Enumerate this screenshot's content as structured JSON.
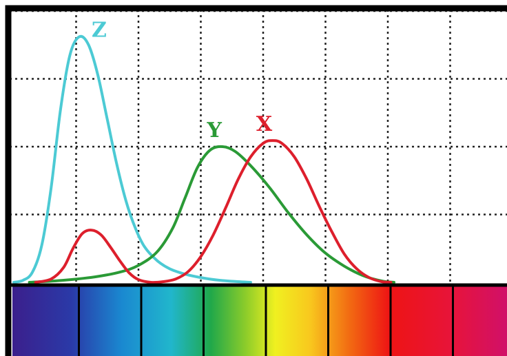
{
  "chart_data": {
    "type": "line",
    "title": "",
    "xlabel": "",
    "ylabel": "",
    "xlim": [
      0,
      8
    ],
    "ylim": [
      0,
      4
    ],
    "grid": true,
    "spectrum_band": true,
    "series": [
      {
        "name": "Z",
        "color": "#4ccad4",
        "points": [
          [
            0.0,
            0.0
          ],
          [
            0.15,
            0.03
          ],
          [
            0.3,
            0.15
          ],
          [
            0.45,
            0.55
          ],
          [
            0.6,
            1.4
          ],
          [
            0.75,
            2.55
          ],
          [
            0.9,
            3.35
          ],
          [
            1.05,
            3.62
          ],
          [
            1.2,
            3.5
          ],
          [
            1.35,
            3.05
          ],
          [
            1.5,
            2.4
          ],
          [
            1.65,
            1.75
          ],
          [
            1.8,
            1.2
          ],
          [
            1.95,
            0.8
          ],
          [
            2.1,
            0.52
          ],
          [
            2.3,
            0.32
          ],
          [
            2.5,
            0.2
          ],
          [
            2.75,
            0.12
          ],
          [
            3.0,
            0.07
          ],
          [
            3.3,
            0.03
          ],
          [
            3.6,
            0.01
          ],
          [
            3.8,
            0.0
          ]
        ]
      },
      {
        "name": "Y",
        "color": "#2a9a36",
        "points": [
          [
            0.25,
            0.0
          ],
          [
            0.8,
            0.03
          ],
          [
            1.3,
            0.08
          ],
          [
            1.7,
            0.15
          ],
          [
            2.0,
            0.25
          ],
          [
            2.3,
            0.45
          ],
          [
            2.55,
            0.8
          ],
          [
            2.75,
            1.25
          ],
          [
            2.95,
            1.7
          ],
          [
            3.15,
            1.95
          ],
          [
            3.35,
            2.0
          ],
          [
            3.55,
            1.93
          ],
          [
            3.8,
            1.72
          ],
          [
            4.1,
            1.4
          ],
          [
            4.4,
            1.03
          ],
          [
            4.7,
            0.7
          ],
          [
            5.0,
            0.43
          ],
          [
            5.3,
            0.24
          ],
          [
            5.6,
            0.1
          ],
          [
            5.9,
            0.02
          ],
          [
            6.1,
            0.0
          ]
        ]
      },
      {
        "name": "X",
        "color": "#dd1f2c",
        "points": [
          [
            0.35,
            0.0
          ],
          [
            0.6,
            0.05
          ],
          [
            0.8,
            0.22
          ],
          [
            0.95,
            0.5
          ],
          [
            1.1,
            0.72
          ],
          [
            1.25,
            0.77
          ],
          [
            1.4,
            0.7
          ],
          [
            1.55,
            0.52
          ],
          [
            1.7,
            0.32
          ],
          [
            1.85,
            0.14
          ],
          [
            2.0,
            0.04
          ],
          [
            2.2,
            0.0
          ],
          [
            2.4,
            0.01
          ],
          [
            2.6,
            0.05
          ],
          [
            2.8,
            0.16
          ],
          [
            3.0,
            0.38
          ],
          [
            3.2,
            0.7
          ],
          [
            3.4,
            1.1
          ],
          [
            3.6,
            1.52
          ],
          [
            3.8,
            1.85
          ],
          [
            4.0,
            2.05
          ],
          [
            4.15,
            2.09
          ],
          [
            4.3,
            2.05
          ],
          [
            4.5,
            1.85
          ],
          [
            4.7,
            1.52
          ],
          [
            4.9,
            1.12
          ],
          [
            5.1,
            0.75
          ],
          [
            5.3,
            0.42
          ],
          [
            5.5,
            0.2
          ],
          [
            5.7,
            0.07
          ],
          [
            5.9,
            0.01
          ],
          [
            6.05,
            0.0
          ]
        ]
      }
    ]
  }
}
